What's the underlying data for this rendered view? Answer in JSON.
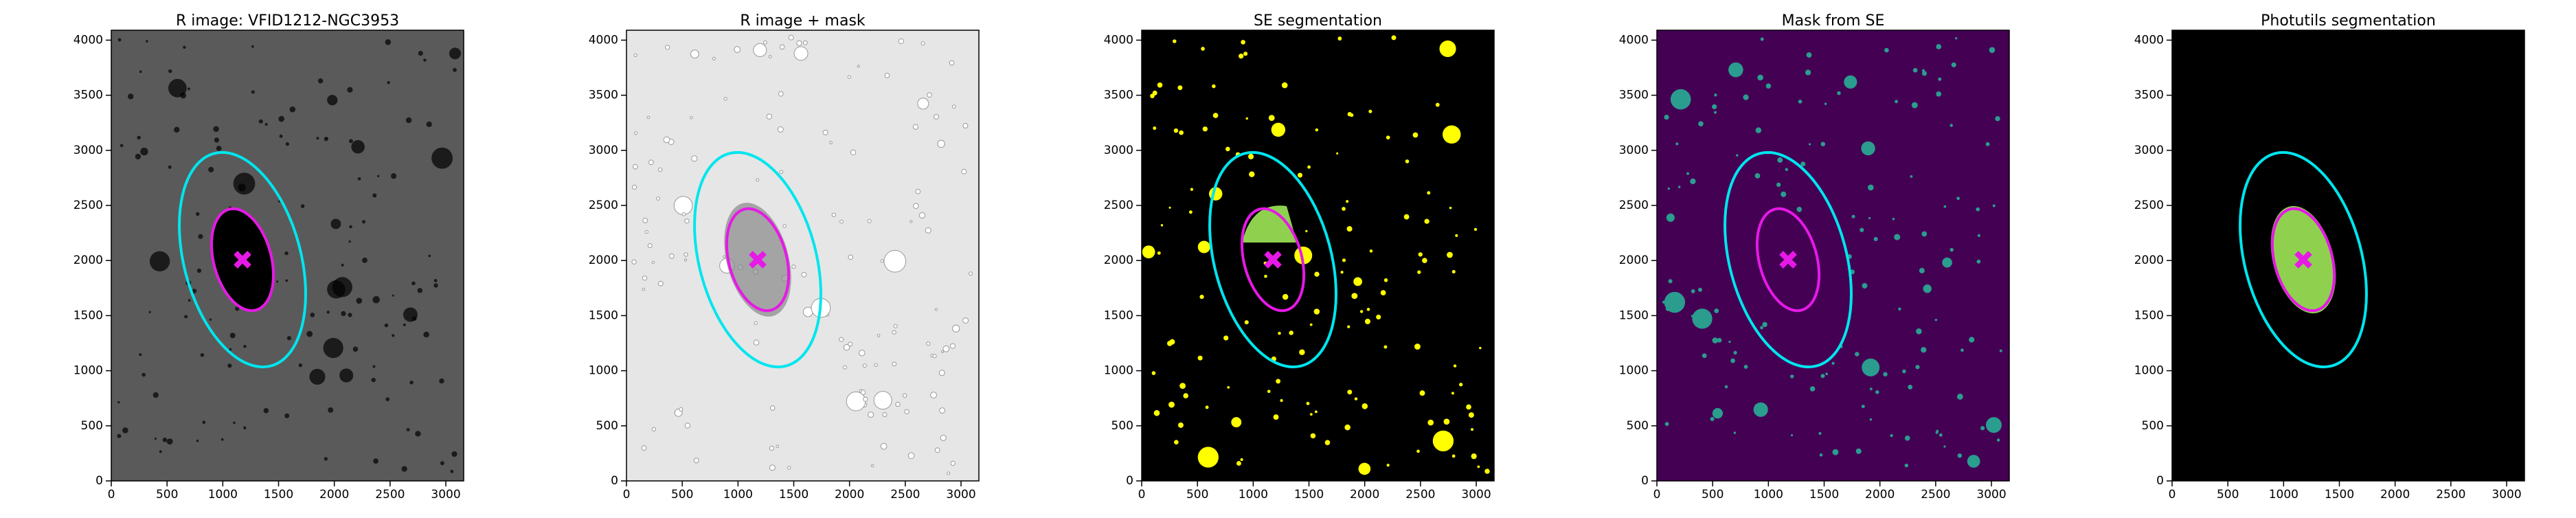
{
  "chart_data": [
    {
      "type": "image",
      "title": "R image: VFID1212-NGC3953",
      "xlim": [
        0,
        3160
      ],
      "ylim": [
        0,
        4090
      ],
      "xticks": [
        0,
        500,
        1000,
        1500,
        2000,
        2500,
        3000
      ],
      "yticks": [
        0,
        500,
        1000,
        1500,
        2000,
        2500,
        3000,
        3500,
        4000
      ],
      "background": "#5a5a5a"
    },
    {
      "type": "image",
      "title": "R image + mask",
      "xlim": [
        0,
        3160
      ],
      "ylim": [
        0,
        4090
      ],
      "xticks": [
        0,
        500,
        1000,
        1500,
        2000,
        2500,
        3000
      ],
      "yticks": [
        0,
        500,
        1000,
        1500,
        2000,
        2500,
        3000,
        3500,
        4000
      ],
      "background": "#e6e6e6"
    },
    {
      "type": "image",
      "title": "SE segmentation",
      "xlim": [
        0,
        3160
      ],
      "ylim": [
        0,
        4090
      ],
      "xticks": [
        0,
        500,
        1000,
        1500,
        2000,
        2500,
        3000
      ],
      "yticks": [
        0,
        500,
        1000,
        1500,
        2000,
        2500,
        3000,
        3500,
        4000
      ],
      "background": "#000000"
    },
    {
      "type": "image",
      "title": "Mask from SE",
      "xlim": [
        0,
        3160
      ],
      "ylim": [
        0,
        4090
      ],
      "xticks": [
        0,
        500,
        1000,
        1500,
        2000,
        2500,
        3000
      ],
      "yticks": [
        0,
        500,
        1000,
        1500,
        2000,
        2500,
        3000,
        3500,
        4000
      ],
      "background": "#440154"
    },
    {
      "type": "image",
      "title": "Photutils segmentation",
      "xlim": [
        0,
        3160
      ],
      "ylim": [
        0,
        4090
      ],
      "xticks": [
        0,
        500,
        1000,
        1500,
        2000,
        2500,
        3000
      ],
      "yticks": [
        0,
        500,
        1000,
        1500,
        2000,
        2500,
        3000,
        3500,
        4000
      ],
      "background": "#000000"
    }
  ]
}
